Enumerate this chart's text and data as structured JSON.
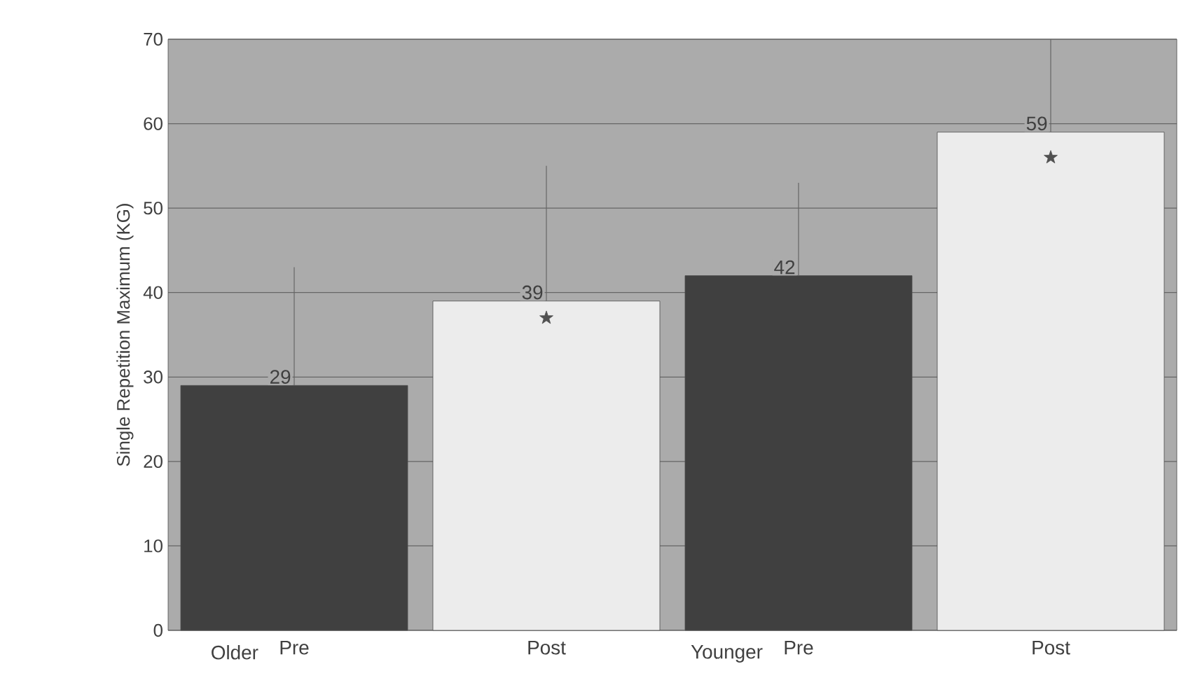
{
  "chart_data": {
    "type": "bar",
    "ylabel": "Single Repetition Maximum (KG)",
    "categories": [
      "Pre",
      "Post",
      "Pre",
      "Post"
    ],
    "annotations": [
      "Older",
      "Younger"
    ],
    "series": [
      {
        "colors": [
          "#404040",
          "#ececec",
          "#404040",
          "#ececec"
        ],
        "values": [
          29,
          39,
          42,
          59
        ],
        "value_labels": [
          "29",
          "39",
          "42",
          "59"
        ],
        "errors": [
          [
            29,
            43
          ],
          [
            39,
            55
          ],
          [
            42,
            53
          ],
          [
            59,
            70
          ]
        ]
      },
      {
        "type": "scatter",
        "marker": "star",
        "color": "#505050",
        "values": [
          null,
          37,
          null,
          56
        ]
      }
    ],
    "ylim": [
      0,
      70
    ],
    "yticks": [
      0,
      10,
      20,
      30,
      40,
      50,
      60,
      70
    ],
    "grid": "y"
  }
}
